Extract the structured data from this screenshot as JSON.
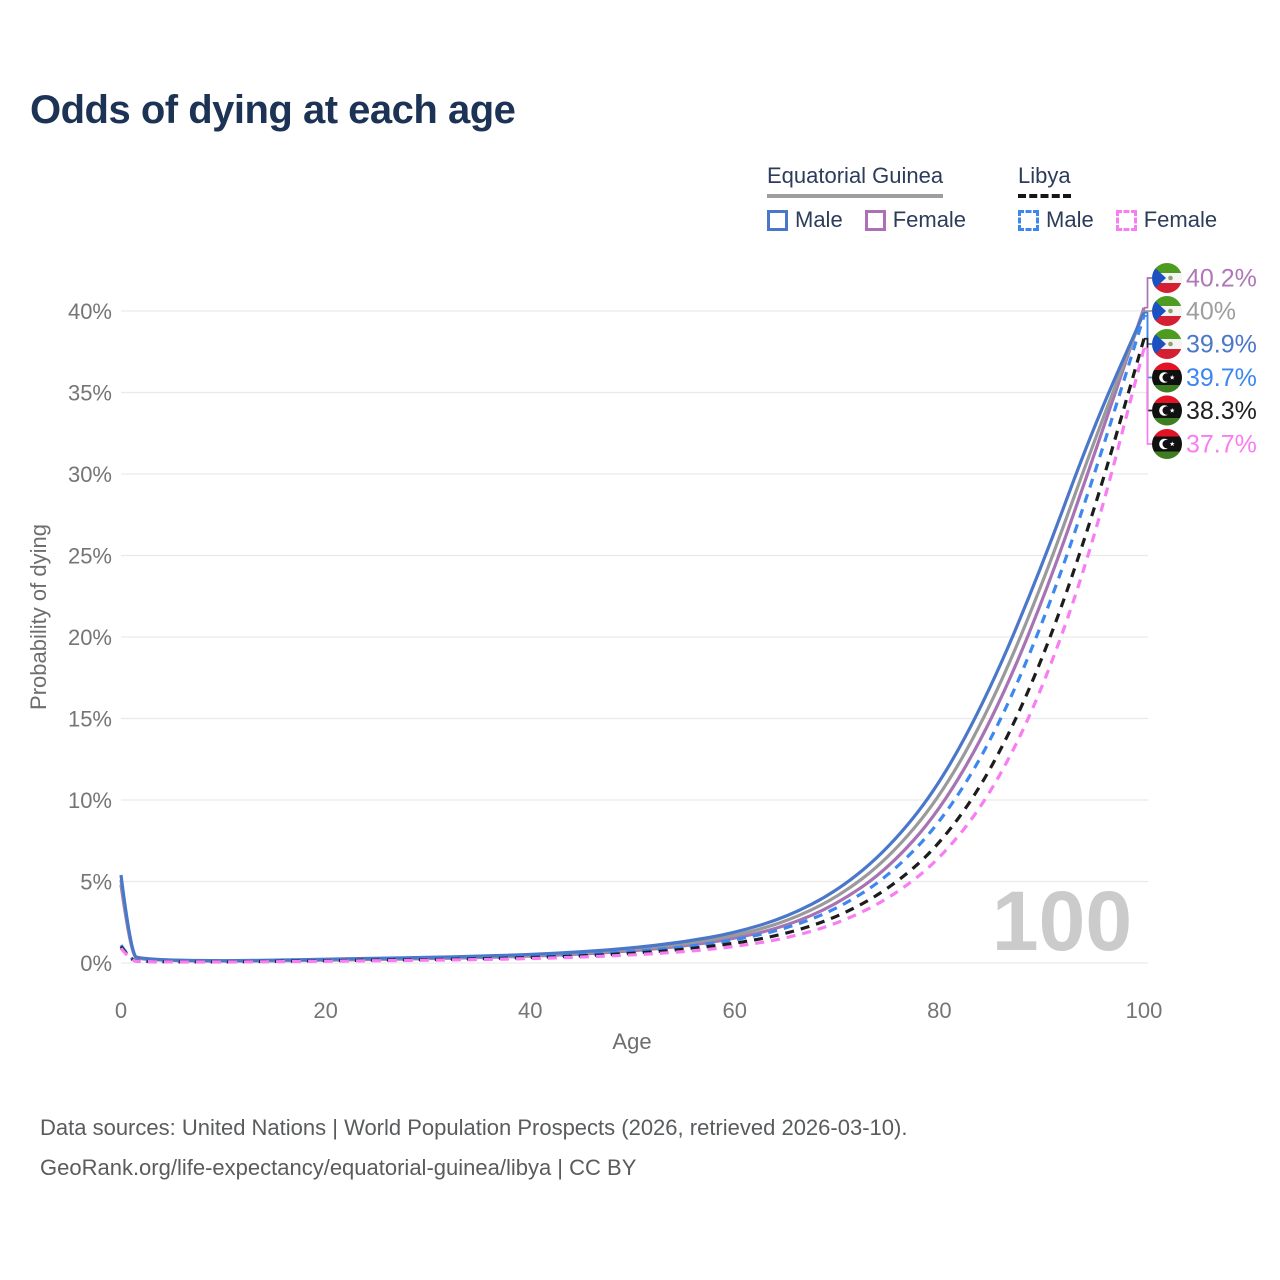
{
  "page": {
    "title": "Odds of dying at each age"
  },
  "legend": {
    "groups": [
      {
        "name": "Equatorial Guinea",
        "underline": "solid",
        "underline_color": "#9e9e9e",
        "items": [
          {
            "label": "Male",
            "color": "#4a77c9",
            "style": "solid"
          },
          {
            "label": "Female",
            "color": "#ad6fb5",
            "style": "solid"
          }
        ]
      },
      {
        "name": "Libya",
        "underline": "dashed",
        "underline_color": "#161616",
        "items": [
          {
            "label": "Male",
            "color": "#3c87f0",
            "style": "dashed"
          },
          {
            "label": "Female",
            "color": "#f97df2",
            "style": "dashed"
          }
        ]
      }
    ]
  },
  "chart_data": {
    "type": "line",
    "title": "Odds of dying at each age",
    "xlabel": "Age",
    "ylabel": "Probability of dying",
    "xlim": [
      0,
      100
    ],
    "ylim": [
      0,
      42
    ],
    "x_ticks": [
      "0",
      "20",
      "40",
      "60",
      "80",
      "100"
    ],
    "y_ticks": [
      "0%",
      "5%",
      "10%",
      "15%",
      "20%",
      "25%",
      "30%",
      "35%",
      "40%"
    ],
    "grid": "horizontal",
    "legend_position": "top-right",
    "watermark": "100",
    "ages": [
      0,
      1,
      2,
      5,
      10,
      15,
      20,
      25,
      30,
      35,
      40,
      45,
      50,
      55,
      60,
      65,
      70,
      75,
      80,
      85,
      90,
      95,
      100
    ],
    "series": [
      {
        "name": "Equatorial Guinea — Female",
        "country": "Equatorial Guinea",
        "sex": "Female",
        "style": "solid",
        "color": "#a873b3",
        "flag": "gq",
        "end_label": "40.2%",
        "end_label_color": "#b077b8",
        "values": [
          4.8,
          0.4,
          0.24,
          0.15,
          0.11,
          0.13,
          0.18,
          0.22,
          0.27,
          0.33,
          0.42,
          0.54,
          0.74,
          1.03,
          1.49,
          2.26,
          3.6,
          5.8,
          9.3,
          14.7,
          22.0,
          30.9,
          40.2
        ]
      },
      {
        "name": "Equatorial Guinea — Both sexes",
        "country": "Equatorial Guinea",
        "sex": "Both",
        "style": "solid",
        "color": "#9a9a9a",
        "flag": "gq",
        "end_label": "40%",
        "end_label_color": "#9e9e9e",
        "values": [
          5.1,
          0.42,
          0.26,
          0.16,
          0.12,
          0.15,
          0.21,
          0.26,
          0.31,
          0.38,
          0.47,
          0.61,
          0.83,
          1.15,
          1.66,
          2.52,
          4.0,
          6.4,
          10.1,
          15.7,
          23.1,
          31.8,
          40.0
        ]
      },
      {
        "name": "Equatorial Guinea — Male",
        "country": "Equatorial Guinea",
        "sex": "Male",
        "style": "solid",
        "color": "#4a77c9",
        "flag": "gq",
        "end_label": "39.9%",
        "end_label_color": "#4a77c9",
        "values": [
          5.4,
          0.45,
          0.28,
          0.17,
          0.13,
          0.17,
          0.24,
          0.29,
          0.34,
          0.42,
          0.52,
          0.68,
          0.92,
          1.28,
          1.85,
          2.8,
          4.4,
          7.0,
          10.9,
          16.8,
          24.3,
          32.8,
          39.9
        ]
      },
      {
        "name": "Libya — Male",
        "country": "Libya",
        "sex": "Male",
        "style": "dashed",
        "color": "#3c87f0",
        "flag": "ly",
        "end_label": "39.7%",
        "end_label_color": "#3c87f0",
        "values": [
          1.1,
          0.16,
          0.11,
          0.08,
          0.08,
          0.12,
          0.18,
          0.22,
          0.26,
          0.31,
          0.39,
          0.51,
          0.7,
          0.97,
          1.4,
          2.1,
          3.3,
          5.3,
          8.5,
          13.5,
          20.6,
          29.6,
          39.7
        ]
      },
      {
        "name": "Libya — Both sexes",
        "country": "Libya",
        "sex": "Both",
        "style": "dashed",
        "color": "#1c1c1c",
        "flag": "ly",
        "end_label": "38.3%",
        "end_label_color": "#212121",
        "values": [
          1.0,
          0.14,
          0.1,
          0.07,
          0.07,
          0.1,
          0.14,
          0.18,
          0.21,
          0.26,
          0.33,
          0.43,
          0.59,
          0.83,
          1.19,
          1.78,
          2.8,
          4.5,
          7.2,
          11.7,
          18.4,
          27.4,
          38.3
        ]
      },
      {
        "name": "Libya — Female",
        "country": "Libya",
        "sex": "Female",
        "style": "dashed",
        "color": "#f97df2",
        "flag": "ly",
        "end_label": "37.7%",
        "end_label_color": "#f97df2",
        "values": [
          0.9,
          0.13,
          0.09,
          0.06,
          0.06,
          0.08,
          0.11,
          0.14,
          0.17,
          0.21,
          0.27,
          0.36,
          0.49,
          0.69,
          1.0,
          1.5,
          2.4,
          3.9,
          6.3,
          10.3,
          16.6,
          25.6,
          37.7
        ]
      }
    ]
  },
  "footer": {
    "line1": "Data sources: United Nations | World Population Prospects (2026, retrieved 2026-03-10).",
    "line2": "GeoRank.org/life-expectancy/equatorial-guinea/libya | CC BY"
  }
}
